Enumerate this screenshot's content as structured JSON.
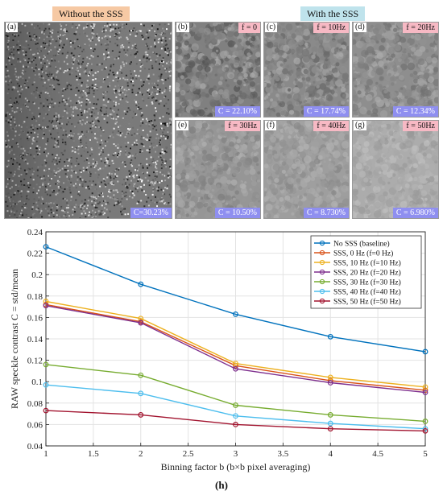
{
  "header": {
    "left_tag": "Without the SSS",
    "right_tag": "With the SSS"
  },
  "panels": [
    {
      "label": "(a)",
      "f": "",
      "c": "C=30.23%",
      "tone": 0
    },
    {
      "label": "(b)",
      "f": "f = 0",
      "c": "C = 22.10%",
      "tone": 1
    },
    {
      "label": "(c)",
      "f": "f = 10Hz",
      "c": "C = 17.74%",
      "tone": 2
    },
    {
      "label": "(d)",
      "f": "f = 20Hz",
      "c": "C = 12.34%",
      "tone": 3
    },
    {
      "label": "(e)",
      "f": "f = 30Hz",
      "c": "C = 10.50%",
      "tone": 4
    },
    {
      "label": "(f)",
      "f": "f = 40Hz",
      "c": "C = 8.730%",
      "tone": 5
    },
    {
      "label": "(g)",
      "f": "f = 50Hz",
      "c": "C = 6.980%",
      "tone": 6
    }
  ],
  "caption": "(h)",
  "chart_data": {
    "type": "line",
    "x": [
      1,
      2,
      3,
      4,
      5
    ],
    "xlabel": "Binning factor b (b×b pixel averaging)",
    "ylabel": "RAW speckle contrast C = std/mean",
    "xlim": [
      1,
      5
    ],
    "ylim": [
      0.04,
      0.24
    ],
    "xticks": [
      "1",
      "1.5",
      "2",
      "2.5",
      "3",
      "3.5",
      "4",
      "4.5",
      "5"
    ],
    "yticks": [
      "0.04",
      "0.06",
      "0.08",
      "0.1",
      "0.12",
      "0.14",
      "0.16",
      "0.18",
      "0.2",
      "0.22",
      "0.24"
    ],
    "grid": true,
    "legend_position": "top-right",
    "series": [
      {
        "name": "No SSS (baseline)",
        "color": "#0072bd",
        "values": [
          0.226,
          0.191,
          0.163,
          0.142,
          0.128
        ]
      },
      {
        "name": "SSS, 0 Hz (f=0 Hz)",
        "color": "#d95319",
        "values": [
          0.172,
          0.156,
          0.115,
          0.101,
          0.092
        ]
      },
      {
        "name": "SSS, 10 Hz (f=10 Hz)",
        "color": "#edb120",
        "values": [
          0.175,
          0.159,
          0.117,
          0.104,
          0.095
        ]
      },
      {
        "name": "SSS, 20 Hz (f=20 Hz)",
        "color": "#7e2f8e",
        "values": [
          0.171,
          0.155,
          0.112,
          0.099,
          0.09
        ]
      },
      {
        "name": "SSS, 30 Hz (f=30 Hz)",
        "color": "#77ac30",
        "values": [
          0.116,
          0.106,
          0.078,
          0.069,
          0.063
        ]
      },
      {
        "name": "SSS, 40 Hz (f=40 Hz)",
        "color": "#4dbeee",
        "values": [
          0.097,
          0.089,
          0.068,
          0.061,
          0.056
        ]
      },
      {
        "name": "SSS, 50 Hz (f=50 Hz)",
        "color": "#a2142f",
        "values": [
          0.073,
          0.069,
          0.06,
          0.056,
          0.054
        ]
      }
    ]
  }
}
